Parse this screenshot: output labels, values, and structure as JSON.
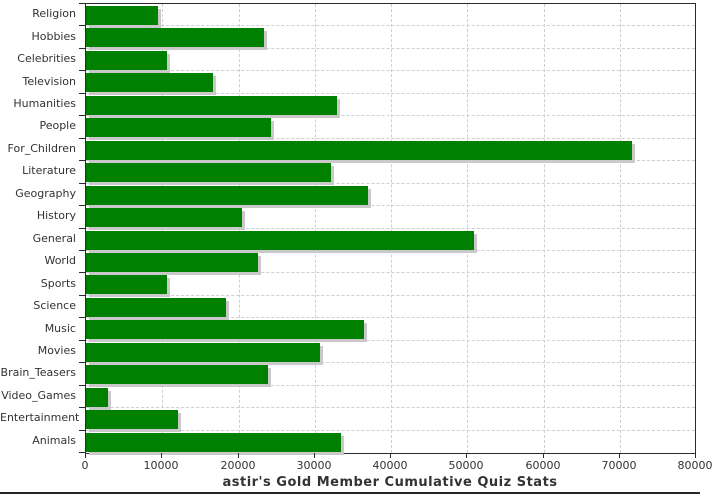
{
  "chart_data": {
    "type": "bar",
    "orientation": "horizontal",
    "title": "astir's Gold Member Cumulative Quiz Stats",
    "categories": [
      "Religion",
      "Hobbies",
      "Celebrities",
      "Television",
      "Humanities",
      "People",
      "For_Children",
      "Literature",
      "Geography",
      "History",
      "General",
      "World",
      "Sports",
      "Science",
      "Music",
      "Movies",
      "Brain_Teasers",
      "Video_Games",
      "Entertainment",
      "Animals"
    ],
    "values": [
      9500,
      23300,
      10600,
      16600,
      32900,
      24200,
      71600,
      32100,
      37000,
      20500,
      50900,
      22500,
      10600,
      18400,
      36500,
      30700,
      23900,
      2900,
      12000,
      33400
    ],
    "xlabel": "",
    "ylabel": "",
    "xlim": [
      0,
      80000
    ],
    "x_ticks": [
      0,
      10000,
      20000,
      30000,
      40000,
      50000,
      60000,
      70000,
      80000
    ],
    "grid": "dashed-both-axes",
    "legend": "none",
    "colors": {
      "bar": "#008000",
      "bar_shadow": "#c9c9c9",
      "gridline": "#cfcfcf",
      "axis": "#2b2b2b",
      "text": "#333333",
      "background": "#ffffff"
    }
  }
}
